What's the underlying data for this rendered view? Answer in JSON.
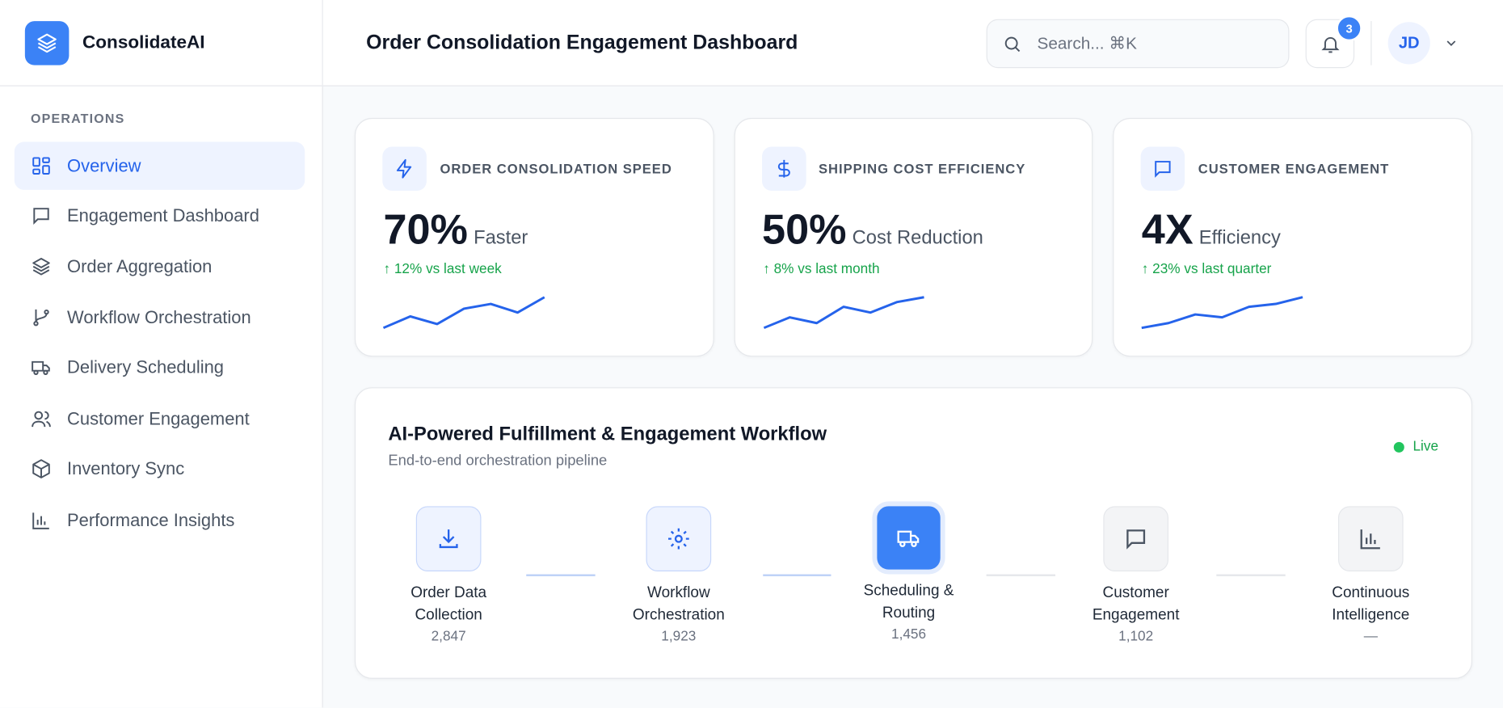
{
  "sidebar": {
    "brand": "ConsolidateAI",
    "section": "OPERATIONS",
    "nav": [
      "Overview",
      "Engagement Dashboard",
      "Order Aggregation",
      "Workflow Orchestration",
      "Delivery Scheduling",
      "Customer Engagement",
      "Inventory Sync",
      "Performance Insights"
    ]
  },
  "header": {
    "title": "Order Consolidation Engagement Dashboard",
    "search": "Search... ⌘K",
    "notifications": "3",
    "avatar": "JD"
  },
  "metrics": [
    {
      "label": "ORDER CONSOLIDATION SPEED",
      "value": "70%",
      "unit": "Faster",
      "change": "↑ 12% vs last week"
    },
    {
      "label": "SHIPPING COST EFFICIENCY",
      "value": "50%",
      "unit": "Cost Reduction",
      "change": "↑ 8% vs last month"
    },
    {
      "label": "CUSTOMER ENGAGEMENT",
      "value": "4X",
      "unit": "Efficiency",
      "change": "↑ 23% vs last quarter"
    }
  ],
  "workflow": {
    "title": "AI-Powered Fulfillment & Engagement Workflow",
    "subtitle": "End-to-end orchestration pipeline",
    "status": "Live",
    "steps": [
      {
        "label": "Order Data Collection",
        "count": "2,847"
      },
      {
        "label": "Workflow Orchestration",
        "count": "1,923"
      },
      {
        "label": "Scheduling & Routing",
        "count": "1,456"
      },
      {
        "label": "Customer Engagement",
        "count": "1,102"
      },
      {
        "label": "Continuous Intelligence",
        "count": "—"
      }
    ]
  }
}
